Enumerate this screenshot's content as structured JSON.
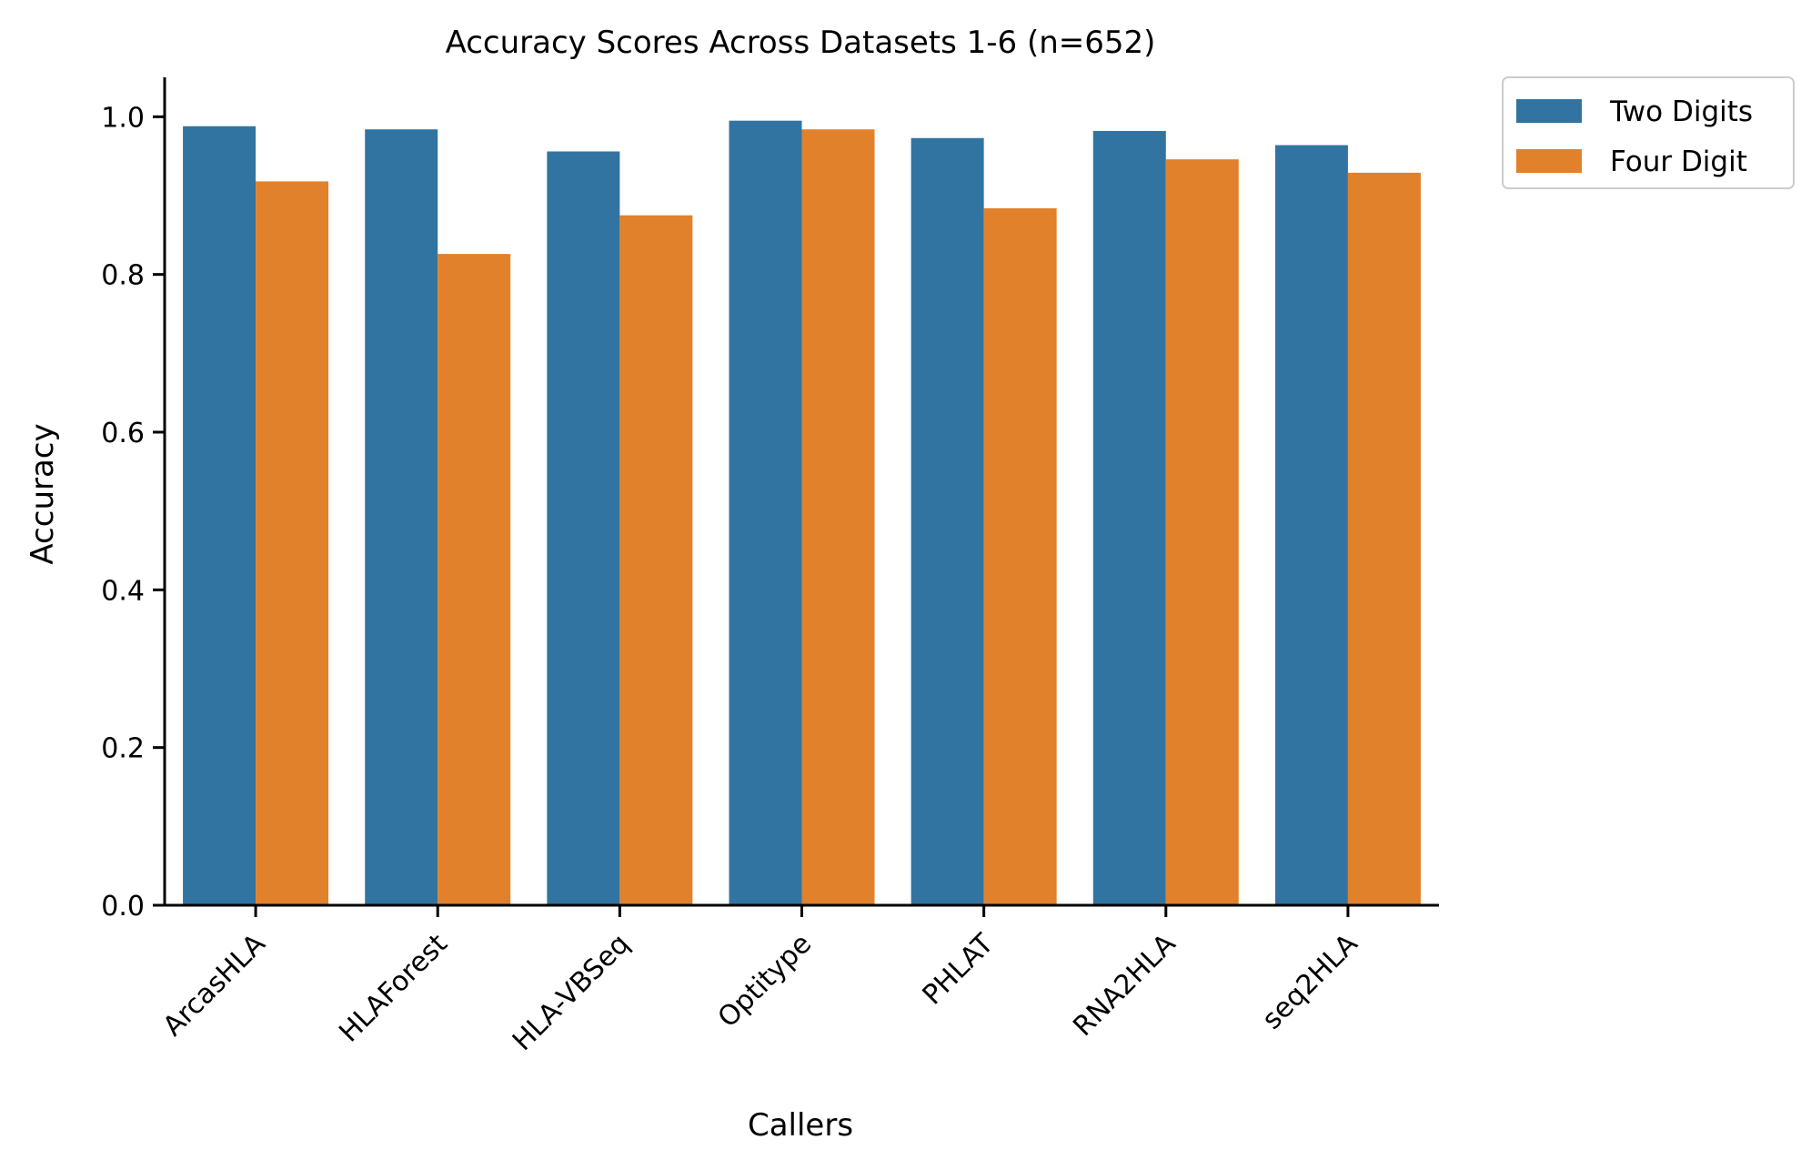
{
  "chart_data": {
    "type": "bar",
    "title": "Accuracy Scores Across Datasets 1-6 (n=652)",
    "xlabel": "Callers",
    "ylabel": "Accuracy",
    "categories": [
      "ArcasHLA",
      "HLAForest",
      "HLA-VBSeq",
      "Optitype",
      "PHLAT",
      "RNA2HLA",
      "seq2HLA"
    ],
    "series": [
      {
        "name": "Two Digits",
        "color": "#3274a1",
        "values": [
          0.988,
          0.984,
          0.956,
          0.995,
          0.973,
          0.982,
          0.964
        ]
      },
      {
        "name": "Four Digit",
        "color": "#e1812c",
        "values": [
          0.918,
          0.826,
          0.875,
          0.984,
          0.884,
          0.946,
          0.929
        ]
      }
    ],
    "ylim": [
      0,
      1.05
    ],
    "yticks": [
      "0.0",
      "0.2",
      "0.4",
      "0.6",
      "0.8",
      "1.0"
    ],
    "grid": false,
    "legend_position": "outside-top-right"
  }
}
